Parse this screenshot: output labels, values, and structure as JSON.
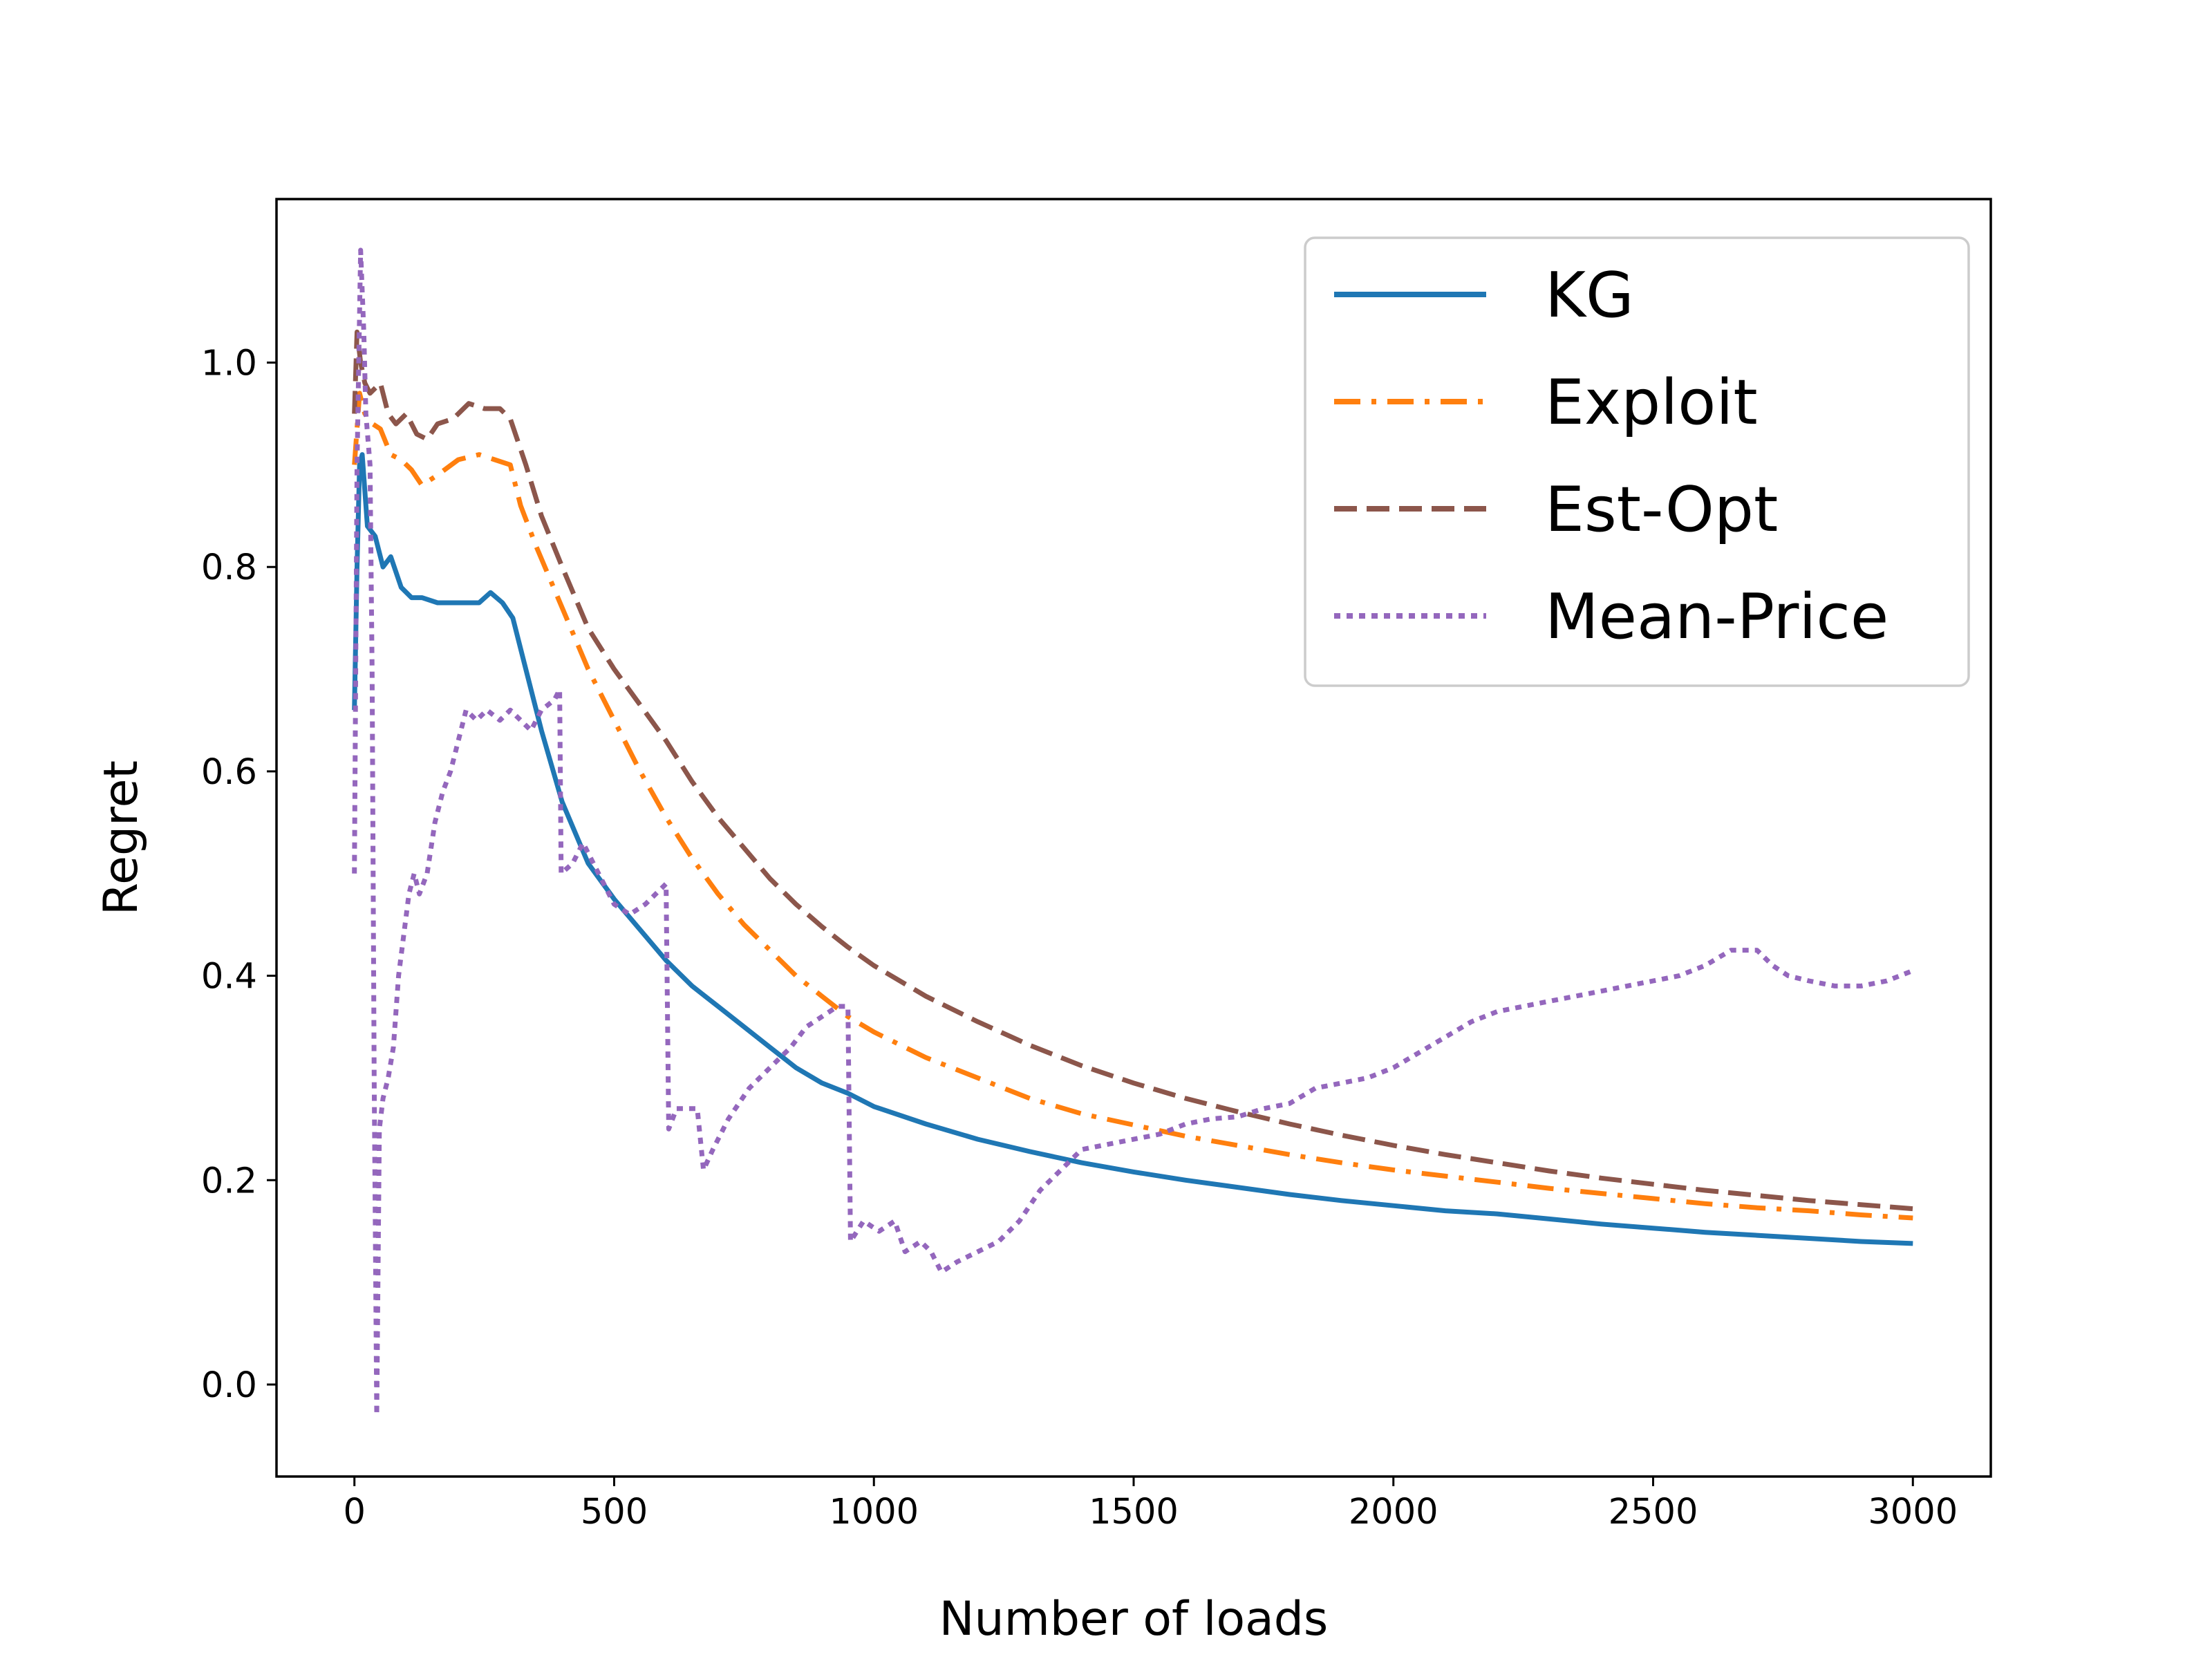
{
  "chart_data": {
    "type": "line",
    "title": "",
    "xlabel": "Number of loads",
    "ylabel": "Regret",
    "xlim": [
      -150,
      3150
    ],
    "ylim": [
      -0.09,
      1.16
    ],
    "xticks": [
      0,
      500,
      1000,
      1500,
      2000,
      2500,
      3000
    ],
    "xtick_labels": [
      "0",
      "500",
      "1000",
      "1500",
      "2000",
      "2500",
      "3000"
    ],
    "yticks": [
      0.0,
      0.2,
      0.4,
      0.6,
      0.8,
      1.0
    ],
    "ytick_labels": [
      "0.0",
      "0.2",
      "0.4",
      "0.6",
      "0.8",
      "1.0"
    ],
    "grid": false,
    "legend_position": "top-right",
    "series": [
      {
        "name": "KG",
        "style": "solid",
        "color": "#1f77b4",
        "points": [
          [
            0,
            0.66
          ],
          [
            5,
            0.8
          ],
          [
            10,
            0.9
          ],
          [
            15,
            0.91
          ],
          [
            25,
            0.84
          ],
          [
            40,
            0.83
          ],
          [
            55,
            0.8
          ],
          [
            70,
            0.81
          ],
          [
            90,
            0.78
          ],
          [
            110,
            0.77
          ],
          [
            130,
            0.77
          ],
          [
            160,
            0.765
          ],
          [
            200,
            0.765
          ],
          [
            240,
            0.765
          ],
          [
            262,
            0.775
          ],
          [
            285,
            0.765
          ],
          [
            305,
            0.75
          ],
          [
            330,
            0.7
          ],
          [
            360,
            0.64
          ],
          [
            400,
            0.57
          ],
          [
            450,
            0.51
          ],
          [
            500,
            0.475
          ],
          [
            550,
            0.445
          ],
          [
            600,
            0.415
          ],
          [
            650,
            0.39
          ],
          [
            700,
            0.37
          ],
          [
            750,
            0.35
          ],
          [
            800,
            0.33
          ],
          [
            850,
            0.31
          ],
          [
            900,
            0.295
          ],
          [
            950,
            0.285
          ],
          [
            1000,
            0.272
          ],
          [
            1100,
            0.255
          ],
          [
            1200,
            0.24
          ],
          [
            1300,
            0.228
          ],
          [
            1400,
            0.217
          ],
          [
            1500,
            0.208
          ],
          [
            1600,
            0.2
          ],
          [
            1700,
            0.193
          ],
          [
            1800,
            0.186
          ],
          [
            1900,
            0.18
          ],
          [
            2000,
            0.175
          ],
          [
            2100,
            0.17
          ],
          [
            2200,
            0.167
          ],
          [
            2300,
            0.162
          ],
          [
            2400,
            0.157
          ],
          [
            2500,
            0.153
          ],
          [
            2600,
            0.149
          ],
          [
            2700,
            0.146
          ],
          [
            2800,
            0.143
          ],
          [
            2900,
            0.14
          ],
          [
            3000,
            0.138
          ]
        ]
      },
      {
        "name": "Exploit",
        "style": "dashdot",
        "color": "#ff7f0e",
        "points": [
          [
            0,
            0.9
          ],
          [
            10,
            0.97
          ],
          [
            20,
            0.95
          ],
          [
            35,
            0.94
          ],
          [
            50,
            0.935
          ],
          [
            70,
            0.91
          ],
          [
            90,
            0.905
          ],
          [
            110,
            0.895
          ],
          [
            130,
            0.88
          ],
          [
            160,
            0.89
          ],
          [
            200,
            0.905
          ],
          [
            240,
            0.91
          ],
          [
            270,
            0.905
          ],
          [
            300,
            0.9
          ],
          [
            320,
            0.86
          ],
          [
            350,
            0.82
          ],
          [
            400,
            0.76
          ],
          [
            450,
            0.7
          ],
          [
            500,
            0.65
          ],
          [
            550,
            0.6
          ],
          [
            600,
            0.555
          ],
          [
            650,
            0.515
          ],
          [
            700,
            0.48
          ],
          [
            750,
            0.45
          ],
          [
            800,
            0.425
          ],
          [
            850,
            0.4
          ],
          [
            900,
            0.38
          ],
          [
            950,
            0.36
          ],
          [
            1000,
            0.345
          ],
          [
            1100,
            0.32
          ],
          [
            1200,
            0.3
          ],
          [
            1300,
            0.28
          ],
          [
            1400,
            0.265
          ],
          [
            1500,
            0.254
          ],
          [
            1600,
            0.243
          ],
          [
            1700,
            0.234
          ],
          [
            1800,
            0.225
          ],
          [
            1900,
            0.217
          ],
          [
            2000,
            0.21
          ],
          [
            2100,
            0.204
          ],
          [
            2200,
            0.198
          ],
          [
            2300,
            0.192
          ],
          [
            2400,
            0.187
          ],
          [
            2500,
            0.182
          ],
          [
            2600,
            0.177
          ],
          [
            2700,
            0.173
          ],
          [
            2800,
            0.17
          ],
          [
            2900,
            0.166
          ],
          [
            3000,
            0.163
          ]
        ]
      },
      {
        "name": "Est-Opt",
        "style": "dashed",
        "color": "#8c564b",
        "points": [
          [
            0,
            0.95
          ],
          [
            5,
            1.03
          ],
          [
            12,
            1.0
          ],
          [
            20,
            0.98
          ],
          [
            30,
            0.97
          ],
          [
            50,
            0.98
          ],
          [
            65,
            0.95
          ],
          [
            80,
            0.94
          ],
          [
            100,
            0.95
          ],
          [
            120,
            0.93
          ],
          [
            140,
            0.925
          ],
          [
            160,
            0.94
          ],
          [
            190,
            0.945
          ],
          [
            220,
            0.96
          ],
          [
            250,
            0.955
          ],
          [
            280,
            0.955
          ],
          [
            300,
            0.945
          ],
          [
            330,
            0.9
          ],
          [
            360,
            0.85
          ],
          [
            400,
            0.8
          ],
          [
            450,
            0.74
          ],
          [
            500,
            0.7
          ],
          [
            550,
            0.665
          ],
          [
            600,
            0.63
          ],
          [
            650,
            0.59
          ],
          [
            700,
            0.555
          ],
          [
            750,
            0.525
          ],
          [
            800,
            0.495
          ],
          [
            850,
            0.47
          ],
          [
            900,
            0.448
          ],
          [
            950,
            0.428
          ],
          [
            1000,
            0.41
          ],
          [
            1100,
            0.38
          ],
          [
            1200,
            0.355
          ],
          [
            1300,
            0.332
          ],
          [
            1400,
            0.312
          ],
          [
            1500,
            0.295
          ],
          [
            1600,
            0.28
          ],
          [
            1700,
            0.267
          ],
          [
            1800,
            0.255
          ],
          [
            1900,
            0.244
          ],
          [
            2000,
            0.234
          ],
          [
            2100,
            0.225
          ],
          [
            2200,
            0.217
          ],
          [
            2300,
            0.209
          ],
          [
            2400,
            0.202
          ],
          [
            2500,
            0.196
          ],
          [
            2600,
            0.19
          ],
          [
            2700,
            0.185
          ],
          [
            2800,
            0.18
          ],
          [
            2900,
            0.176
          ],
          [
            3000,
            0.172
          ]
        ]
      },
      {
        "name": "Mean-Price",
        "style": "dotted",
        "color": "#9467bd",
        "points": [
          [
            0,
            0.5
          ],
          [
            5,
            0.9
          ],
          [
            12,
            1.11
          ],
          [
            18,
            1.03
          ],
          [
            22,
            0.95
          ],
          [
            30,
            0.9
          ],
          [
            34,
            0.7
          ],
          [
            38,
            0.3
          ],
          [
            43,
            -0.03
          ],
          [
            48,
            0.25
          ],
          [
            55,
            0.28
          ],
          [
            65,
            0.3
          ],
          [
            75,
            0.33
          ],
          [
            85,
            0.4
          ],
          [
            95,
            0.44
          ],
          [
            105,
            0.48
          ],
          [
            115,
            0.5
          ],
          [
            125,
            0.48
          ],
          [
            140,
            0.5
          ],
          [
            155,
            0.55
          ],
          [
            170,
            0.58
          ],
          [
            185,
            0.6
          ],
          [
            200,
            0.63
          ],
          [
            215,
            0.66
          ],
          [
            235,
            0.65
          ],
          [
            255,
            0.66
          ],
          [
            280,
            0.65
          ],
          [
            300,
            0.66
          ],
          [
            320,
            0.65
          ],
          [
            340,
            0.64
          ],
          [
            360,
            0.66
          ],
          [
            385,
            0.67
          ],
          [
            395,
            0.68
          ],
          [
            398,
            0.5
          ],
          [
            420,
            0.51
          ],
          [
            440,
            0.53
          ],
          [
            470,
            0.5
          ],
          [
            500,
            0.47
          ],
          [
            530,
            0.46
          ],
          [
            560,
            0.47
          ],
          [
            600,
            0.49
          ],
          [
            605,
            0.25
          ],
          [
            620,
            0.27
          ],
          [
            640,
            0.27
          ],
          [
            660,
            0.27
          ],
          [
            672,
            0.21
          ],
          [
            690,
            0.23
          ],
          [
            720,
            0.26
          ],
          [
            760,
            0.29
          ],
          [
            800,
            0.31
          ],
          [
            840,
            0.33
          ],
          [
            870,
            0.35
          ],
          [
            900,
            0.36
          ],
          [
            930,
            0.37
          ],
          [
            950,
            0.37
          ],
          [
            955,
            0.14
          ],
          [
            980,
            0.16
          ],
          [
            1010,
            0.15
          ],
          [
            1040,
            0.16
          ],
          [
            1060,
            0.13
          ],
          [
            1090,
            0.14
          ],
          [
            1110,
            0.13
          ],
          [
            1130,
            0.11
          ],
          [
            1160,
            0.12
          ],
          [
            1200,
            0.13
          ],
          [
            1240,
            0.14
          ],
          [
            1280,
            0.16
          ],
          [
            1320,
            0.19
          ],
          [
            1360,
            0.21
          ],
          [
            1400,
            0.23
          ],
          [
            1450,
            0.235
          ],
          [
            1500,
            0.24
          ],
          [
            1550,
            0.245
          ],
          [
            1600,
            0.255
          ],
          [
            1650,
            0.26
          ],
          [
            1700,
            0.262
          ],
          [
            1750,
            0.27
          ],
          [
            1800,
            0.275
          ],
          [
            1850,
            0.29
          ],
          [
            1900,
            0.295
          ],
          [
            1950,
            0.3
          ],
          [
            2000,
            0.31
          ],
          [
            2050,
            0.325
          ],
          [
            2100,
            0.34
          ],
          [
            2150,
            0.355
          ],
          [
            2200,
            0.365
          ],
          [
            2250,
            0.37
          ],
          [
            2300,
            0.375
          ],
          [
            2350,
            0.38
          ],
          [
            2400,
            0.385
          ],
          [
            2450,
            0.39
          ],
          [
            2500,
            0.395
          ],
          [
            2550,
            0.4
          ],
          [
            2600,
            0.41
          ],
          [
            2650,
            0.425
          ],
          [
            2700,
            0.425
          ],
          [
            2730,
            0.41
          ],
          [
            2760,
            0.4
          ],
          [
            2800,
            0.395
          ],
          [
            2850,
            0.39
          ],
          [
            2900,
            0.39
          ],
          [
            2950,
            0.395
          ],
          [
            3000,
            0.405
          ]
        ]
      }
    ]
  }
}
